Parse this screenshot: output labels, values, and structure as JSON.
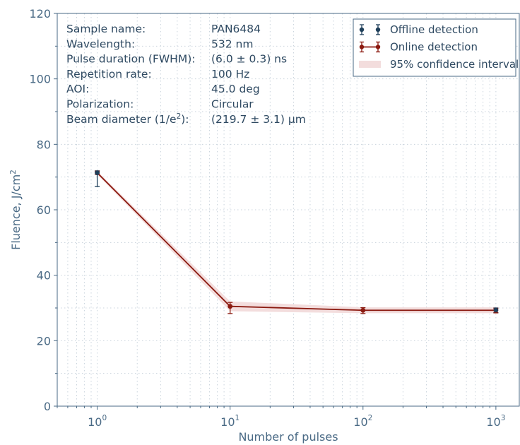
{
  "chart_data": {
    "type": "line",
    "xscale": "log",
    "xlim": [
      0.5,
      1500
    ],
    "ylim": [
      0,
      120
    ],
    "xlabel": "Number of pulses",
    "ylabel_main": "Fluence, J/cm",
    "ylabel_sup": "2",
    "x_ticks": [
      {
        "base": "10",
        "exp": "0",
        "value": 1
      },
      {
        "base": "10",
        "exp": "1",
        "value": 10
      },
      {
        "base": "10",
        "exp": "2",
        "value": 100
      },
      {
        "base": "10",
        "exp": "3",
        "value": 1000
      }
    ],
    "y_ticks": [
      0,
      20,
      40,
      60,
      80,
      100,
      120
    ],
    "grid": true,
    "legend_position": "top-right",
    "series": [
      {
        "name": "Offline detection",
        "color": "#1f3f5a",
        "points": [
          {
            "x": 1,
            "y": 71.3,
            "err_low": 4.2,
            "err_high": 0.6
          },
          {
            "x": 1000,
            "y": 29.4,
            "err_low": 0.8,
            "err_high": 0.6
          }
        ]
      },
      {
        "name": "Online detection",
        "color": "#8b1a10",
        "points": [
          {
            "x": 1,
            "y": 71.3,
            "err_low": 0.5,
            "err_high": 0.5
          },
          {
            "x": 10,
            "y": 30.5,
            "err_low": 2.2,
            "err_high": 1.2
          },
          {
            "x": 100,
            "y": 29.3,
            "err_low": 1.0,
            "err_high": 0.8
          },
          {
            "x": 1000,
            "y": 29.3,
            "err_low": 0.8,
            "err_high": 0.6
          }
        ]
      },
      {
        "name": "95% confidence interval",
        "color": "#f3dddd",
        "band": [
          {
            "x": 1,
            "low": 70.8,
            "high": 71.8
          },
          {
            "x": 10,
            "low": 29.0,
            "high": 32.0
          },
          {
            "x": 100,
            "low": 28.4,
            "high": 30.2
          },
          {
            "x": 1000,
            "low": 28.4,
            "high": 30.2
          }
        ]
      }
    ],
    "info_table": [
      {
        "label": "Sample name:",
        "value": "PAN6484"
      },
      {
        "label": "Wavelength:",
        "value": "532 nm"
      },
      {
        "label": "Pulse duration (FWHM):",
        "value": "(6.0 ± 0.3) ns"
      },
      {
        "label": "Repetition rate:",
        "value": "100 Hz"
      },
      {
        "label": "AOI:",
        "value": "45.0 deg"
      },
      {
        "label": "Polarization:",
        "value": "Circular"
      },
      {
        "label": "Beam diameter (1/e",
        "label_sup": "2",
        "label_after": "):",
        "value": "(219.7 ± 3.1) µm"
      }
    ]
  }
}
